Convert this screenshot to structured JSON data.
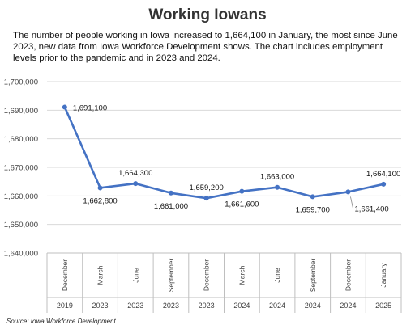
{
  "title": "Working Iowans",
  "subtitle": "The number of people working in Iowa increased to 1,664,100 in January, the most since June 2023, new data from Iowa Workforce Development shows. The chart includes employment levels prior to the pandemic and in 2023 and 2024.",
  "source": "Source: Iowa Workforce Development",
  "chart_data": {
    "type": "line",
    "categories": [
      {
        "month": "December",
        "year": "2019"
      },
      {
        "month": "March",
        "year": "2023"
      },
      {
        "month": "June",
        "year": "2023"
      },
      {
        "month": "September",
        "year": "2023"
      },
      {
        "month": "December",
        "year": "2023"
      },
      {
        "month": "March",
        "year": "2024"
      },
      {
        "month": "June",
        "year": "2024"
      },
      {
        "month": "September",
        "year": "2024"
      },
      {
        "month": "December",
        "year": "2024"
      },
      {
        "month": "January",
        "year": "2025"
      }
    ],
    "values": [
      1691100,
      1662800,
      1664300,
      1661000,
      1659200,
      1661600,
      1663000,
      1659700,
      1661400,
      1664100
    ],
    "data_labels": [
      "1,691,100",
      "1,662,800",
      "1,664,300",
      "1,661,000",
      "1,659,200",
      "1,661,600",
      "1,663,000",
      "1,659,700",
      "1,661,400",
      "1,664,100"
    ],
    "label_positions": [
      "right",
      "below",
      "above",
      "below",
      "above",
      "below",
      "above",
      "below",
      "right",
      "above"
    ],
    "ylim": [
      1640000,
      1700000
    ],
    "yticks": [
      1640000,
      1650000,
      1660000,
      1670000,
      1680000,
      1690000,
      1700000
    ],
    "ytick_labels": [
      "1,640,000",
      "1,650,000",
      "1,660,000",
      "1,670,000",
      "1,680,000",
      "1,690,000",
      "1,700,000"
    ],
    "grid": true,
    "line_color": "#4472c4",
    "grid_color": "#d9d9d9"
  }
}
